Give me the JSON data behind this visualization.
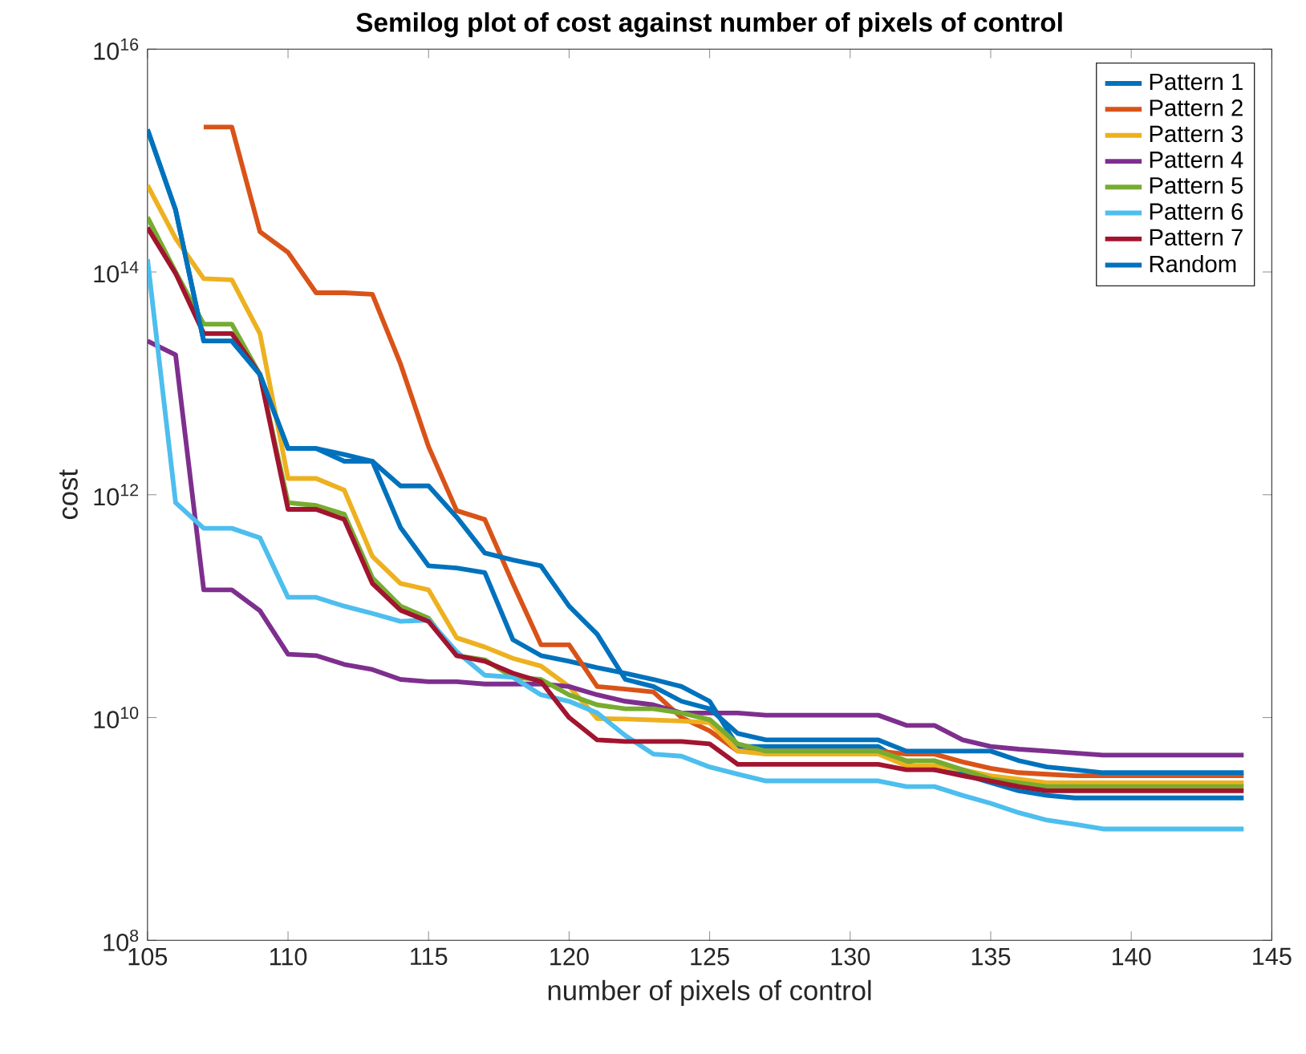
{
  "chart_data": {
    "type": "line",
    "title": "Semilog plot of cost against number of pixels of control",
    "xlabel": "number of pixels of control",
    "ylabel": "cost",
    "x": [
      105,
      106,
      107,
      108,
      109,
      110,
      111,
      112,
      113,
      114,
      115,
      116,
      117,
      118,
      119,
      120,
      121,
      122,
      123,
      124,
      125,
      126,
      127,
      128,
      129,
      130,
      131,
      132,
      133,
      134,
      135,
      136,
      137,
      138,
      139,
      140,
      141,
      142,
      143,
      144
    ],
    "series": [
      {
        "name": "Pattern 1",
        "color": "#0072bd",
        "values": [
          1900000000000000.0,
          360000000000000.0,
          24000000000000.0,
          24000000000000.0,
          12000000000000.0,
          2600000000000.0,
          2600000000000.0,
          2300000000000.0,
          2000000000000.0,
          510000000000.0,
          230000000000.0,
          220000000000.0,
          200000000000.0,
          50000000000.0,
          36000000000.0,
          32000000000.0,
          28000000000.0,
          25000000000.0,
          22000000000.0,
          19000000000.0,
          14000000000.0,
          5500000000.0,
          5500000000.0,
          5500000000.0,
          5500000000.0,
          5500000000.0,
          5500000000.0,
          3800000000.0,
          3400000000.0,
          3100000000.0,
          2600000000.0,
          2200000000.0,
          2000000000.0,
          1900000000.0,
          1900000000.0,
          1900000000.0,
          1900000000.0,
          1900000000.0,
          1900000000.0,
          1900000000.0
        ]
      },
      {
        "name": "Pattern 2",
        "color": "#d95319",
        "values": [
          null,
          null,
          2000000000000000.0,
          2000000000000000.0,
          230000000000000.0,
          150000000000000.0,
          65000000000000.0,
          65000000000000.0,
          63000000000000.0,
          15000000000000.0,
          2700000000000.0,
          720000000000.0,
          600000000000.0,
          160000000000.0,
          45000000000.0,
          45000000000.0,
          19000000000.0,
          18000000000.0,
          17000000000.0,
          10000000000.0,
          7600000000.0,
          5000000000.0,
          5000000000.0,
          5000000000.0,
          5000000000.0,
          5000000000.0,
          5000000000.0,
          4700000000.0,
          4700000000.0,
          4000000000.0,
          3500000000.0,
          3200000000.0,
          3100000000.0,
          3000000000.0,
          3000000000.0,
          3000000000.0,
          3000000000.0,
          3000000000.0,
          3000000000.0,
          3000000000.0
        ]
      },
      {
        "name": "Pattern 3",
        "color": "#edb120",
        "values": [
          600000000000000.0,
          200000000000000.0,
          87000000000000.0,
          85000000000000.0,
          28000000000000.0,
          1400000000000.0,
          1400000000000.0,
          1100000000000.0,
          280000000000.0,
          160000000000.0,
          140000000000.0,
          52000000000.0,
          43000000000.0,
          34000000000.0,
          29000000000.0,
          19000000000.0,
          9800000000.0,
          9700000000.0,
          9500000000.0,
          9300000000.0,
          9000000000.0,
          5000000000.0,
          4700000000.0,
          4700000000.0,
          4700000000.0,
          4700000000.0,
          4700000000.0,
          3700000000.0,
          3700000000.0,
          3400000000.0,
          3000000000.0,
          2800000000.0,
          2600000000.0,
          2600000000.0,
          2600000000.0,
          2600000000.0,
          2600000000.0,
          2600000000.0,
          2600000000.0,
          2600000000.0
        ]
      },
      {
        "name": "Pattern 4",
        "color": "#7e2f8e",
        "values": [
          24000000000000.0,
          18000000000000.0,
          140000000000.0,
          140000000000.0,
          91000000000.0,
          37000000000.0,
          36000000000.0,
          30000000000.0,
          27000000000.0,
          22000000000.0,
          21000000000.0,
          21000000000.0,
          20000000000.0,
          20000000000.0,
          20000000000.0,
          19000000000.0,
          16000000000.0,
          14000000000.0,
          13000000000.0,
          11000000000.0,
          11000000000.0,
          11000000000.0,
          10500000000.0,
          10500000000.0,
          10500000000.0,
          10500000000.0,
          10500000000.0,
          8500000000.0,
          8500000000.0,
          6300000000.0,
          5500000000.0,
          5200000000.0,
          5000000000.0,
          4800000000.0,
          4600000000.0,
          4600000000.0,
          4600000000.0,
          4600000000.0,
          4600000000.0,
          4600000000.0
        ]
      },
      {
        "name": "Pattern 5",
        "color": "#77ac30",
        "values": [
          310000000000000.0,
          100000000000000.0,
          34000000000000.0,
          34000000000000.0,
          12000000000000.0,
          850000000000.0,
          800000000000.0,
          670000000000.0,
          180000000000.0,
          100000000000.0,
          78000000000.0,
          36000000000.0,
          33000000000.0,
          23000000000.0,
          22000000000.0,
          16000000000.0,
          13000000000.0,
          12000000000.0,
          12000000000.0,
          11000000000.0,
          9600000000.0,
          5800000000.0,
          5000000000.0,
          5000000000.0,
          5000000000.0,
          5000000000.0,
          5000000000.0,
          4100000000.0,
          4100000000.0,
          3400000000.0,
          2800000000.0,
          2600000000.0,
          2400000000.0,
          2400000000.0,
          2400000000.0,
          2400000000.0,
          2400000000.0,
          2400000000.0,
          2400000000.0,
          2400000000.0
        ]
      },
      {
        "name": "Pattern 6",
        "color": "#4dbeee",
        "values": [
          130000000000000.0,
          850000000000.0,
          500000000000.0,
          500000000000.0,
          410000000000.0,
          120000000000.0,
          120000000000.0,
          100000000000.0,
          86000000000.0,
          73000000000.0,
          75000000000.0,
          39000000000.0,
          24000000000.0,
          23000000000.0,
          16000000000.0,
          14000000000.0,
          11000000000.0,
          6900000000.0,
          4700000000.0,
          4500000000.0,
          3600000000.0,
          3100000000.0,
          2700000000.0,
          2700000000.0,
          2700000000.0,
          2700000000.0,
          2700000000.0,
          2400000000.0,
          2400000000.0,
          2000000000.0,
          1700000000.0,
          1400000000.0,
          1200000000.0,
          1100000000.0,
          1000000000.0,
          1000000000.0,
          1000000000.0,
          1000000000.0,
          1000000000.0,
          1000000000.0
        ]
      },
      {
        "name": "Pattern 7",
        "color": "#a2142f",
        "values": [
          250000000000000.0,
          97000000000000.0,
          28000000000000.0,
          28000000000000.0,
          12000000000000.0,
          740000000000.0,
          740000000000.0,
          600000000000.0,
          160000000000.0,
          92000000000.0,
          73000000000.0,
          36000000000.0,
          32000000000.0,
          25000000000.0,
          21000000000.0,
          10000000000.0,
          6300000000.0,
          6100000000.0,
          6100000000.0,
          6100000000.0,
          5800000000.0,
          3800000000.0,
          3800000000.0,
          3800000000.0,
          3800000000.0,
          3800000000.0,
          3800000000.0,
          3400000000.0,
          3400000000.0,
          3000000000.0,
          2700000000.0,
          2400000000.0,
          2200000000.0,
          2200000000.0,
          2200000000.0,
          2200000000.0,
          2200000000.0,
          2200000000.0,
          2200000000.0,
          2200000000.0
        ]
      },
      {
        "name": "Random",
        "color": "#0072bd",
        "values": [
          1900000000000000.0,
          360000000000000.0,
          24000000000000.0,
          24000000000000.0,
          12000000000000.0,
          2600000000000.0,
          2600000000000.0,
          2000000000000.0,
          2000000000000.0,
          1200000000000.0,
          1200000000000.0,
          630000000000.0,
          300000000000.0,
          260000000000.0,
          230000000000.0,
          100000000000.0,
          56000000000.0,
          22000000000.0,
          19000000000.0,
          14000000000.0,
          12000000000.0,
          7200000000.0,
          6300000000.0,
          6300000000.0,
          6300000000.0,
          6300000000.0,
          6300000000.0,
          5000000000.0,
          5000000000.0,
          5000000000.0,
          5000000000.0,
          4100000000.0,
          3600000000.0,
          3400000000.0,
          3200000000.0,
          3200000000.0,
          3200000000.0,
          3200000000.0,
          3200000000.0,
          3200000000.0
        ]
      }
    ],
    "xlim": [
      105,
      145
    ],
    "ylim": [
      100000000.0,
      1e+16
    ],
    "xticks": [
      105,
      110,
      115,
      120,
      125,
      130,
      135,
      140,
      145
    ],
    "yticks": [
      {
        "value": 100000000.0,
        "label": "10$^{8}$"
      },
      {
        "value": 10000000000.0,
        "label": "10$^{10}$"
      },
      {
        "value": 1000000000000.0,
        "label": "10$^{12}$"
      },
      {
        "value": 100000000000000.0,
        "label": "10$^{14}$"
      },
      {
        "value": 1e+16,
        "label": "10$^{16}$"
      }
    ],
    "log": "y",
    "legend": "top right"
  }
}
